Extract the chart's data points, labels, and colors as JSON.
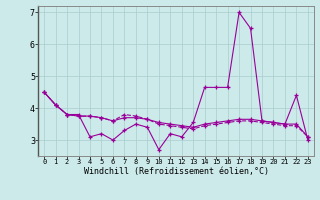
{
  "x": [
    0,
    1,
    2,
    3,
    4,
    5,
    6,
    7,
    8,
    9,
    10,
    11,
    12,
    13,
    14,
    15,
    16,
    17,
    18,
    19,
    20,
    21,
    22,
    23
  ],
  "line1": [
    4.5,
    4.1,
    3.8,
    3.8,
    3.1,
    3.2,
    3.0,
    3.3,
    3.5,
    3.4,
    2.7,
    3.2,
    3.1,
    3.55,
    4.65,
    4.65,
    4.65,
    7.0,
    6.5,
    3.6,
    3.55,
    3.5,
    4.4,
    3.0
  ],
  "line2": [
    4.5,
    4.1,
    3.8,
    3.75,
    3.75,
    3.7,
    3.6,
    3.7,
    3.7,
    3.65,
    3.55,
    3.5,
    3.45,
    3.4,
    3.5,
    3.55,
    3.6,
    3.65,
    3.65,
    3.6,
    3.55,
    3.5,
    3.5,
    3.1
  ],
  "line3": [
    4.5,
    4.1,
    3.8,
    3.75,
    3.75,
    3.7,
    3.6,
    3.8,
    3.75,
    3.65,
    3.5,
    3.45,
    3.4,
    3.35,
    3.45,
    3.5,
    3.55,
    3.6,
    3.6,
    3.55,
    3.5,
    3.45,
    3.45,
    3.1
  ],
  "ylim": [
    2.5,
    7.2
  ],
  "yticks": [
    3,
    4,
    5,
    6,
    7
  ],
  "xlabel": "Windchill (Refroidissement éolien,°C)",
  "line_color": "#990099",
  "bg_color": "#cceaea",
  "grid_color": "#aacccc"
}
